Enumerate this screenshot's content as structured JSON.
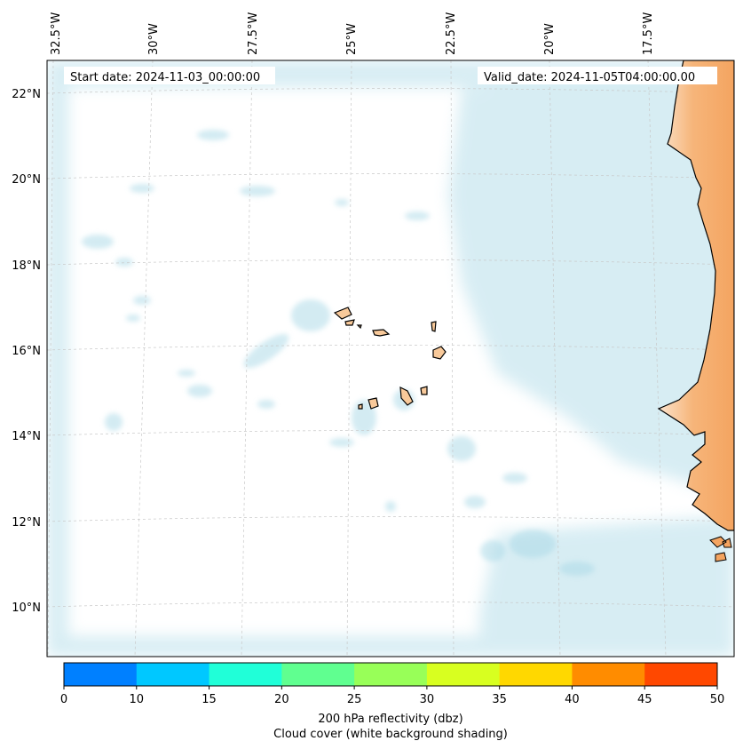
{
  "map": {
    "start_date_label": "Start date: 2024-11-03_00:00:00",
    "valid_date_label": "Valid_date: 2024-11-05T04:00:00.00",
    "lon_labels": [
      "32.5°W",
      "30°W",
      "27.5°W",
      "25°W",
      "22.5°W",
      "20°W",
      "17.5°W"
    ],
    "lat_labels": [
      "22°N",
      "20°N",
      "18°N",
      "16°N",
      "14°N",
      "12°N",
      "10°N"
    ],
    "land_color": "#f4a460",
    "island_color": "#f8c99a",
    "cloud_color": "#a8d8e6"
  },
  "colorbar": {
    "ticks": [
      "0",
      "10",
      "15",
      "20",
      "25",
      "30",
      "35",
      "40",
      "45",
      "50"
    ],
    "colors": [
      "#0080ff",
      "#00c8ff",
      "#20ffd8",
      "#60ff90",
      "#98ff58",
      "#d8ff20",
      "#ffd800",
      "#ff8c00",
      "#ff4800"
    ],
    "label_line1": "200 hPa reflectivity (dbz)",
    "label_line2": "Cloud cover (white background shading)"
  }
}
